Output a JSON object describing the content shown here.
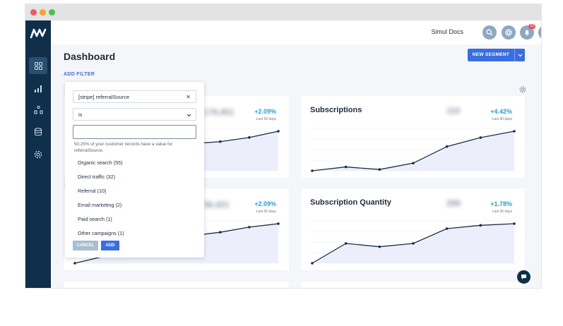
{
  "window": {
    "controls": [
      "close",
      "minimize",
      "maximize"
    ]
  },
  "sidebar": {
    "logo": "app-logo",
    "items": [
      {
        "icon": "grid-icon",
        "active": true
      },
      {
        "icon": "bar-chart-icon",
        "active": false
      },
      {
        "icon": "segments-icon",
        "active": false
      },
      {
        "icon": "database-icon",
        "active": false
      },
      {
        "icon": "gear-icon",
        "active": false
      }
    ]
  },
  "topbar": {
    "user_name": "Simul Docs",
    "notification_count": "13"
  },
  "page": {
    "title": "Dashboard",
    "add_filter": "ADD FILTER",
    "new_segment": "NEW SEGMENT"
  },
  "cards": [
    {
      "title": "",
      "value": "179,451",
      "change": "+2.09%",
      "period": "Last 30 days",
      "series": [
        10,
        14,
        22,
        30,
        36,
        38,
        42,
        48
      ]
    },
    {
      "title": "Subscriptions",
      "value": "110",
      "change": "+4.42%",
      "period": "Last 30 days",
      "series": [
        0,
        6,
        2,
        12,
        38,
        52,
        62
      ]
    },
    {
      "title": "",
      "value": "56,421",
      "change": "+2.09%",
      "period": "Last 30 days",
      "series": [
        0,
        8,
        18,
        26,
        32,
        36,
        42,
        46
      ]
    },
    {
      "title": "Subscription Quantity",
      "value": "286",
      "change": "+1.78%",
      "period": "Last 30 days",
      "series": [
        0,
        24,
        20,
        24,
        42,
        46,
        48
      ]
    }
  ],
  "filter": {
    "field": "[stripe] referralSource",
    "operator": "is",
    "value_placeholder": "",
    "hint": "50.25% of your customer records have a value for referralSource.",
    "options": [
      "Organic search (55)",
      "Direct traffic (32)",
      "Referral (10)",
      "Email marketing (2)",
      "Paid search (1)",
      "Other campaigns (1)"
    ],
    "cancel_label": "CANCEL",
    "add_label": "ADD"
  },
  "colors": {
    "sidebar": "#0f2f4a",
    "accent": "#3a6ee0",
    "positive": "#2a9bd9",
    "line": "#1b2e44",
    "fill": "#eceffb"
  }
}
